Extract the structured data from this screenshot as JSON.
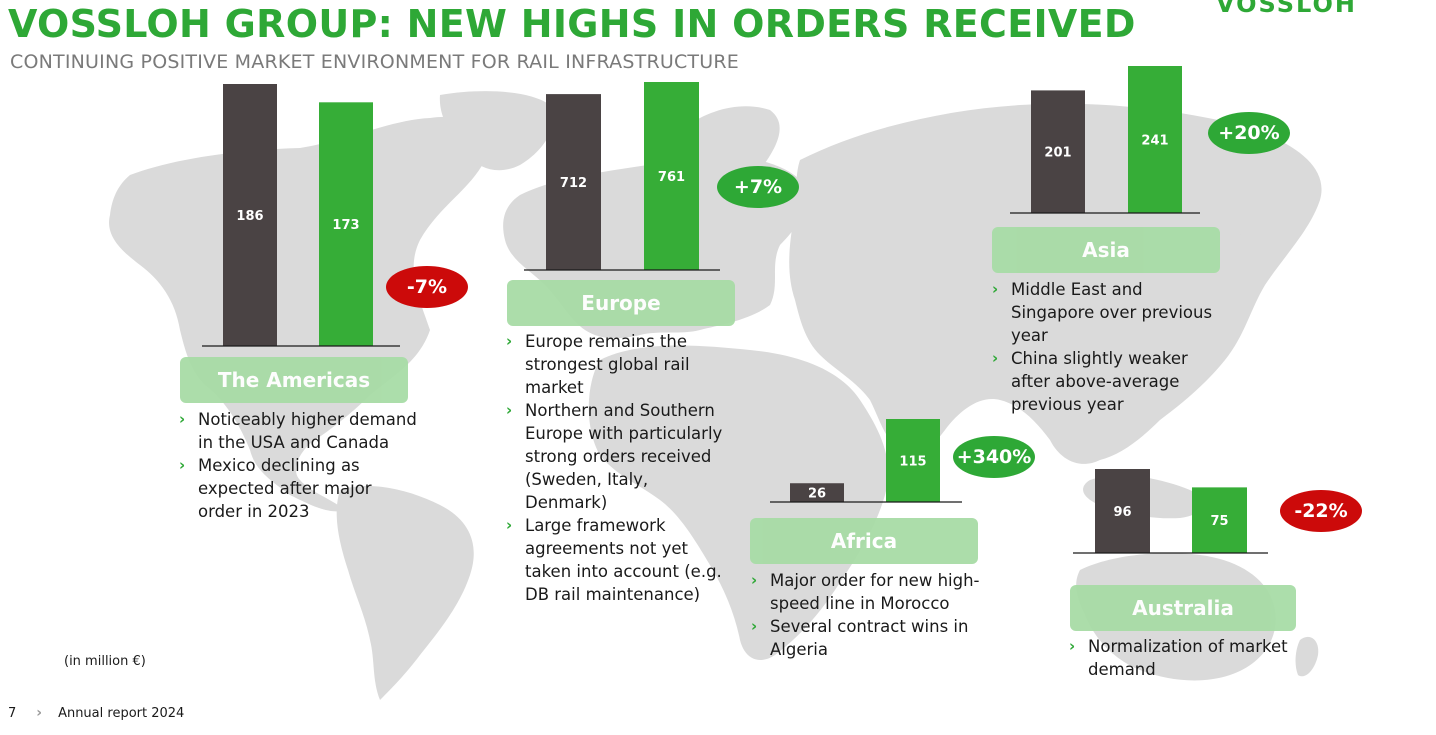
{
  "header": {
    "title": "VOSSLOH GROUP: NEW HIGHS IN ORDERS RECEIVED",
    "subtitle": "CONTINUING POSITIVE MARKET ENVIRONMENT FOR RAIL INFRASTRUCTURE",
    "logo_text": "VOSSLOH"
  },
  "colors": {
    "accent_green": "#2ea836",
    "prior_year_bar": "#4a4344",
    "current_year_bar": "#36ad37",
    "decline_badge": "#cc0a0a",
    "header_box": "#a8dca6",
    "map_land": "#d9d9d9"
  },
  "chart_data": [
    {
      "type": "bar",
      "region": "The Americas",
      "values": [
        186,
        173
      ],
      "change": "-7%",
      "trend": "down",
      "bullets": [
        "Noticeably higher demand in the USA and Canada",
        "Mexico declining as expected after major order in 2023"
      ]
    },
    {
      "type": "bar",
      "region": "Europe",
      "values": [
        712,
        761
      ],
      "change": "+7%",
      "trend": "up",
      "bullets": [
        "Europe remains the strongest global rail market",
        "Northern and Southern Europe with particularly strong orders received (Sweden, Italy, Denmark)",
        "Large framework agreements not yet taken into account (e.g. DB rail maintenance)"
      ]
    },
    {
      "type": "bar",
      "region": "Asia",
      "values": [
        201,
        241
      ],
      "change": "+20%",
      "trend": "up",
      "bullets": [
        "Middle East and Singapore over previous year",
        "China slightly weaker after above-average previous year"
      ]
    },
    {
      "type": "bar",
      "region": "Africa",
      "values": [
        26,
        115
      ],
      "change": "+340%",
      "trend": "up",
      "bullets": [
        "Major order for new high-speed line in Morocco",
        "Several contract wins in Algeria"
      ]
    },
    {
      "type": "bar",
      "region": "Australia",
      "values": [
        96,
        75
      ],
      "change": "-22%",
      "trend": "down",
      "bullets": [
        "Normalization of market demand"
      ]
    }
  ],
  "footnote": "(in million €)",
  "footer": {
    "page_number": "7",
    "report_name": "Annual report 2024"
  },
  "icons": {
    "bullet": "chevron-right-icon",
    "footer_separator": "chevron-right-icon"
  }
}
